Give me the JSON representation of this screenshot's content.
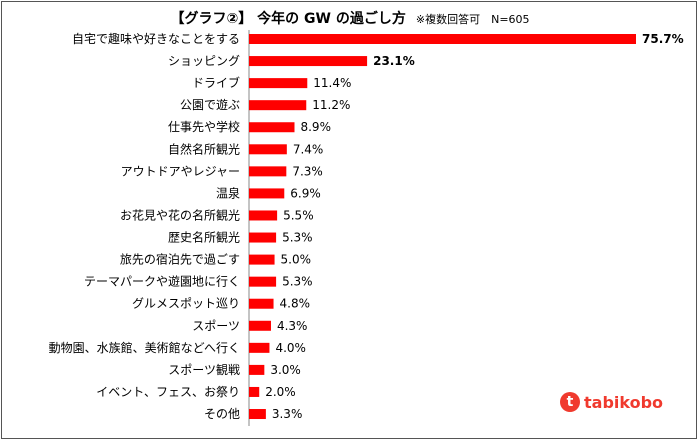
{
  "chart_data": {
    "type": "bar",
    "orientation": "horizontal",
    "title": "【グラフ②】 今年の GW の過ごし方",
    "note": "※複数回答可　N=605",
    "categories": [
      "自宅で趣味や好きなことをする",
      "ショッピング",
      "ドライブ",
      "公園で遊ぶ",
      "仕事先や学校",
      "自然名所観光",
      "アウトドアやレジャー",
      "温泉",
      "お花見や花の名所観光",
      "歴史名所観光",
      "旅先の宿泊先で過ごす",
      "テーマパークや遊園地に行く",
      "グルメスポット巡り",
      "スポーツ",
      "動物園、水族館、美術館などへ行く",
      "スポーツ観戦",
      "イベント、フェス、お祭り",
      "その他"
    ],
    "values": [
      75.7,
      23.1,
      11.4,
      11.2,
      8.9,
      7.4,
      7.3,
      6.9,
      5.5,
      5.3,
      5.0,
      5.3,
      4.8,
      4.3,
      4.0,
      3.0,
      2.0,
      3.3
    ],
    "labels": [
      "75.7%",
      "23.1%",
      "11.4%",
      "11.2%",
      "8.9%",
      "7.4%",
      "7.3%",
      "6.9%",
      "5.5%",
      "5.3%",
      "5.0%",
      "5.3%",
      "4.8%",
      "4.3%",
      "4.0%",
      "3.0%",
      "2.0%",
      "3.3%"
    ],
    "bold_labels": [
      0,
      1
    ],
    "bar_color": "#ff0000",
    "xlim": [
      0,
      80
    ],
    "grid": false
  },
  "logo": {
    "text": "tabikobo",
    "mark": "t",
    "color": "#f03a2e"
  }
}
